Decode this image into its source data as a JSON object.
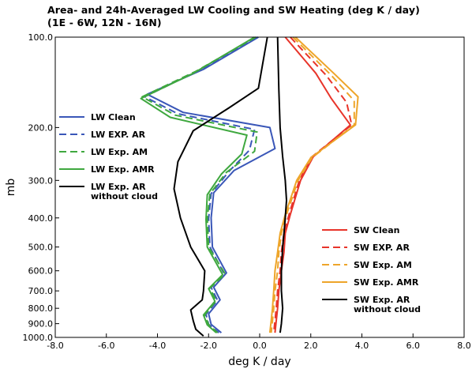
{
  "chart_data": {
    "type": "line",
    "title": "Area- and 24h-Averaged LW Cooling and SW Heating (deg K / day)",
    "subtitle": "(1E - 6W, 12N - 16N)",
    "xlabel": "deg K / day",
    "ylabel": "mb",
    "xlim": [
      -8.0,
      8.0
    ],
    "ylim": [
      1000.0,
      100.0
    ],
    "y_scale": "log",
    "xticks": [
      "-8.0",
      "-6.0",
      "-4.0",
      "-2.0",
      "0.0",
      "2.0",
      "4.0",
      "6.0",
      "8.0"
    ],
    "yticks": [
      "100.0",
      "200.0",
      "300.0",
      "400.0",
      "500.0",
      "600.0",
      "700.0",
      "800.0",
      "900.0",
      "1000.0"
    ],
    "grid": false,
    "legends": [
      {
        "placement": "left-middle",
        "entries": [
          "LW Clean",
          "LW EXP. AR",
          "LW Exp. AM",
          "LW Exp. AMR",
          "LW Exp. AR without cloud"
        ]
      },
      {
        "placement": "bottom-right",
        "entries": [
          "SW Clean",
          "SW EXP. AR",
          "SW Exp. AM",
          "SW Exp. AMR",
          "SW Exp. AR without cloud"
        ]
      }
    ],
    "series": [
      {
        "name": "LW Clean",
        "color": "#3a57b8",
        "dash": "solid",
        "points": [
          [
            -0.05,
            100
          ],
          [
            -2.2,
            128
          ],
          [
            -4.4,
            155
          ],
          [
            -3.0,
            178
          ],
          [
            0.4,
            200
          ],
          [
            0.6,
            235
          ],
          [
            -1.0,
            278
          ],
          [
            -1.8,
            330
          ],
          [
            -1.9,
            400
          ],
          [
            -1.85,
            500
          ],
          [
            -1.3,
            610
          ],
          [
            -1.8,
            680
          ],
          [
            -1.55,
            750
          ],
          [
            -2.0,
            835
          ],
          [
            -1.9,
            905
          ],
          [
            -1.5,
            965
          ]
        ]
      },
      {
        "name": "LW EXP. AR",
        "color": "#3a57b8",
        "dash": "dashed",
        "points": [
          [
            -0.1,
            100
          ],
          [
            -2.3,
            128
          ],
          [
            -4.5,
            158
          ],
          [
            -3.2,
            180
          ],
          [
            -0.2,
            203
          ],
          [
            -0.4,
            238
          ],
          [
            -1.2,
            280
          ],
          [
            -1.9,
            332
          ],
          [
            -2.0,
            402
          ],
          [
            -1.95,
            500
          ],
          [
            -1.4,
            612
          ],
          [
            -1.9,
            682
          ],
          [
            -1.65,
            752
          ],
          [
            -2.1,
            838
          ],
          [
            -2.0,
            905
          ],
          [
            -1.6,
            965
          ]
        ]
      },
      {
        "name": "LW Exp. AM",
        "color": "#3fa83f",
        "dash": "dashed",
        "points": [
          [
            -0.15,
            100
          ],
          [
            -2.5,
            130
          ],
          [
            -4.6,
            158
          ],
          [
            -3.3,
            182
          ],
          [
            -0.1,
            207
          ],
          [
            -0.2,
            240
          ],
          [
            -1.3,
            282
          ],
          [
            -1.95,
            333
          ],
          [
            -2.05,
            402
          ],
          [
            -2.0,
            500
          ],
          [
            -1.35,
            615
          ],
          [
            -1.95,
            685
          ],
          [
            -1.7,
            755
          ],
          [
            -2.15,
            840
          ],
          [
            -2.0,
            907
          ],
          [
            -1.65,
            965
          ]
        ]
      },
      {
        "name": "LW Exp. AMR",
        "color": "#3fa83f",
        "dash": "solid",
        "points": [
          [
            -0.2,
            100
          ],
          [
            -2.6,
            132
          ],
          [
            -4.65,
            160
          ],
          [
            -3.5,
            185
          ],
          [
            -0.5,
            212
          ],
          [
            -0.7,
            245
          ],
          [
            -1.5,
            286
          ],
          [
            -2.05,
            335
          ],
          [
            -2.1,
            405
          ],
          [
            -2.05,
            500
          ],
          [
            -1.45,
            618
          ],
          [
            -2.0,
            688
          ],
          [
            -1.75,
            758
          ],
          [
            -2.2,
            842
          ],
          [
            -2.05,
            908
          ],
          [
            -1.7,
            965
          ]
        ]
      },
      {
        "name": "LW Exp. AR without cloud",
        "color": "#000000",
        "dash": "solid",
        "points": [
          [
            0.3,
            100
          ],
          [
            -0.05,
            148
          ],
          [
            -1.2,
            172
          ],
          [
            -2.6,
            205
          ],
          [
            -3.2,
            260
          ],
          [
            -3.35,
            320
          ],
          [
            -3.1,
            400
          ],
          [
            -2.7,
            500
          ],
          [
            -2.15,
            600
          ],
          [
            -2.2,
            700
          ],
          [
            -2.25,
            750
          ],
          [
            -2.7,
            810
          ],
          [
            -2.6,
            880
          ],
          [
            -2.5,
            940
          ],
          [
            -2.2,
            990
          ]
        ]
      },
      {
        "name": "SW Clean",
        "color": "#e8342a",
        "dash": "solid",
        "points": [
          [
            1.0,
            100
          ],
          [
            2.2,
            132
          ],
          [
            2.8,
            160
          ],
          [
            3.55,
            196
          ],
          [
            2.1,
            250
          ],
          [
            1.6,
            300
          ],
          [
            1.2,
            390
          ],
          [
            1.0,
            450
          ],
          [
            0.95,
            520
          ],
          [
            0.85,
            600
          ],
          [
            0.75,
            700
          ],
          [
            0.7,
            800
          ],
          [
            0.65,
            880
          ],
          [
            0.6,
            965
          ]
        ]
      },
      {
        "name": "SW EXP. AR",
        "color": "#e8342a",
        "dash": "dashed",
        "points": [
          [
            1.2,
            100
          ],
          [
            2.6,
            134
          ],
          [
            3.4,
            165
          ],
          [
            3.6,
            196
          ],
          [
            2.0,
            252
          ],
          [
            1.55,
            300
          ],
          [
            1.15,
            390
          ],
          [
            0.95,
            450
          ],
          [
            0.85,
            520
          ],
          [
            0.8,
            600
          ],
          [
            0.7,
            700
          ],
          [
            0.65,
            800
          ],
          [
            0.6,
            880
          ],
          [
            0.55,
            965
          ]
        ]
      },
      {
        "name": "SW Exp. AM",
        "color": "#eea52a",
        "dash": "dashed",
        "points": [
          [
            1.3,
            100
          ],
          [
            2.8,
            134
          ],
          [
            3.7,
            163
          ],
          [
            3.7,
            196
          ],
          [
            2.05,
            252
          ],
          [
            1.5,
            300
          ],
          [
            1.05,
            390
          ],
          [
            0.85,
            450
          ],
          [
            0.75,
            520
          ],
          [
            0.7,
            600
          ],
          [
            0.6,
            700
          ],
          [
            0.55,
            800
          ],
          [
            0.5,
            880
          ],
          [
            0.45,
            965
          ]
        ]
      },
      {
        "name": "SW Exp. AMR",
        "color": "#eea52a",
        "dash": "solid",
        "points": [
          [
            1.4,
            100
          ],
          [
            2.9,
            132
          ],
          [
            3.85,
            158
          ],
          [
            3.75,
            196
          ],
          [
            2.0,
            252
          ],
          [
            1.45,
            300
          ],
          [
            1.0,
            390
          ],
          [
            0.8,
            450
          ],
          [
            0.7,
            520
          ],
          [
            0.6,
            600
          ],
          [
            0.55,
            700
          ],
          [
            0.5,
            800
          ],
          [
            0.45,
            880
          ],
          [
            0.4,
            965
          ]
        ]
      },
      {
        "name": "SW Exp. AR without cloud",
        "color": "#000000",
        "dash": "solid",
        "points": [
          [
            0.7,
            100
          ],
          [
            0.75,
            150
          ],
          [
            0.8,
            200
          ],
          [
            0.9,
            250
          ],
          [
            1.0,
            300
          ],
          [
            1.05,
            350
          ],
          [
            1.0,
            400
          ],
          [
            0.95,
            450
          ],
          [
            0.9,
            500
          ],
          [
            0.85,
            600
          ],
          [
            0.85,
            700
          ],
          [
            0.9,
            800
          ],
          [
            0.85,
            900
          ],
          [
            0.8,
            965
          ]
        ]
      }
    ]
  }
}
